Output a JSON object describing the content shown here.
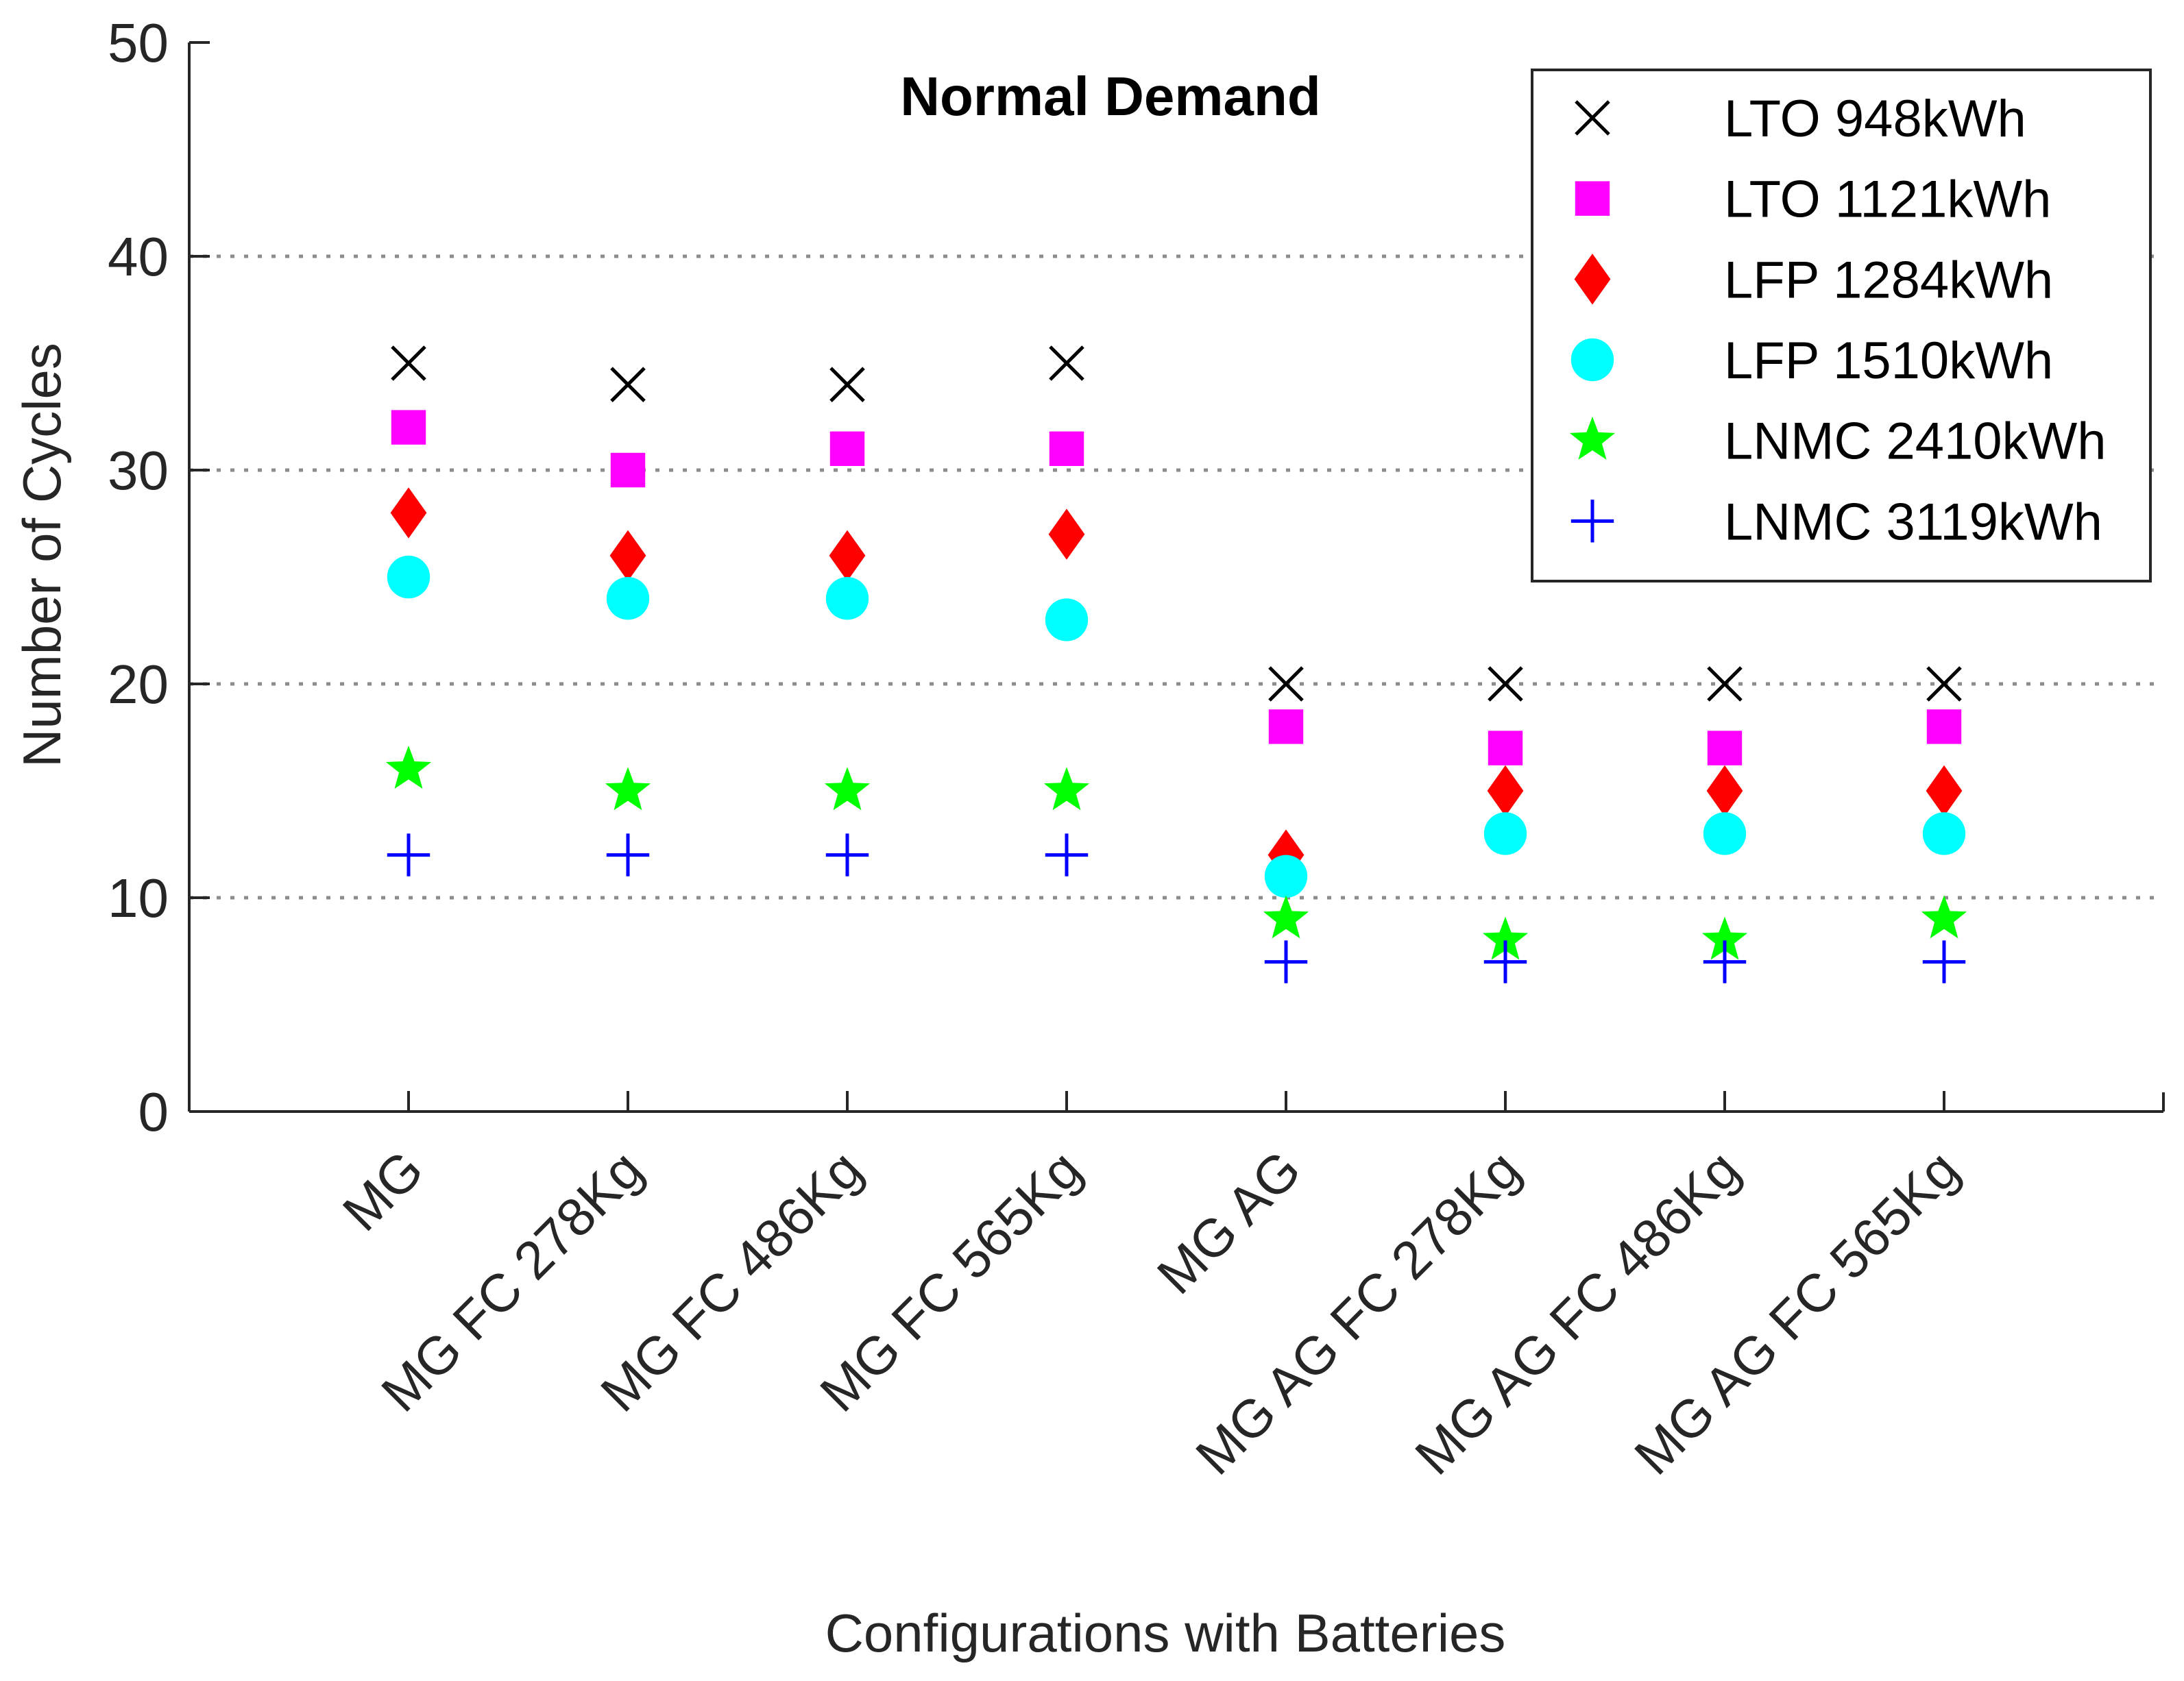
{
  "chart_data": {
    "type": "scatter",
    "title": "Normal Demand",
    "xlabel": "Configurations with Batteries",
    "ylabel": "Number of Cycles",
    "ylim": [
      0,
      50
    ],
    "yticks": [
      0,
      10,
      20,
      30,
      40,
      50
    ],
    "grid": "horizontal-dotted",
    "legend_position": "top-right",
    "categories": [
      "MG",
      "MG FC 278Kg",
      "MG FC 486Kg",
      "MG FC 565Kg",
      "MG AG",
      "MG AG FC 278Kg",
      "MG AG FC 486Kg",
      "MG AG FC 565Kg"
    ],
    "series": [
      {
        "name": "LTO 948kWh",
        "marker": "x",
        "color": "#000000",
        "values": [
          35,
          34,
          34,
          35,
          20,
          20,
          20,
          20
        ]
      },
      {
        "name": "LTO 1121kWh",
        "marker": "square",
        "color": "#ff00ff",
        "values": [
          32,
          30,
          31,
          31,
          18,
          17,
          17,
          18
        ]
      },
      {
        "name": "LFP 1284kWh",
        "marker": "diamond",
        "color": "#ff0000",
        "values": [
          28,
          26,
          26,
          27,
          12,
          15,
          15,
          15
        ]
      },
      {
        "name": "LFP 1510kWh",
        "marker": "circle",
        "color": "#00ffff",
        "values": [
          25,
          24,
          24,
          23,
          11,
          13,
          13,
          13
        ]
      },
      {
        "name": "LNMC 2410kWh",
        "marker": "star",
        "color": "#00ff00",
        "values": [
          16,
          15,
          15,
          15,
          9,
          8,
          8,
          9
        ]
      },
      {
        "name": "LNMC 3119kWh",
        "marker": "plus",
        "color": "#0000ff",
        "values": [
          12,
          12,
          12,
          12,
          7,
          7,
          7,
          7
        ]
      }
    ]
  }
}
